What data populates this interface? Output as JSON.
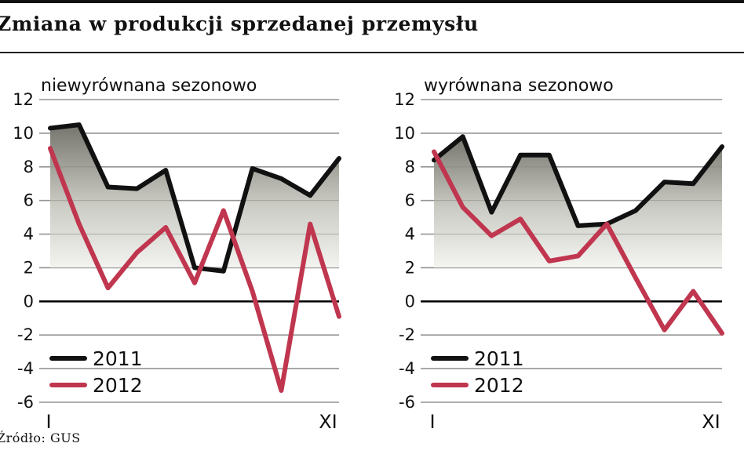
{
  "title": "Zmiana w produkcji sprzedanej przemysłu",
  "source": "Źródło: GUS",
  "colors": {
    "s2011": "#111111",
    "s2012": "#c0364f",
    "grid": "#9a9a9a",
    "zero": "#000000"
  },
  "chart_data": [
    {
      "type": "line",
      "title": "niewyrównana sezonowo",
      "xlabel": "",
      "ylabel": "",
      "ylim": [
        -6,
        12
      ],
      "yticks": [
        "12",
        "10",
        "8",
        "6",
        "4",
        "2",
        "0",
        "-2",
        "-4",
        "-6"
      ],
      "x_tick_labels": [
        {
          "index": 0,
          "label": "I"
        },
        {
          "index": 10,
          "label": "XI"
        }
      ],
      "legend": "bottom-left",
      "shaded_area": true,
      "series": [
        {
          "name": "2011",
          "values": [
            10.3,
            10.5,
            6.8,
            6.7,
            7.8,
            2.0,
            1.8,
            7.9,
            7.3,
            6.3,
            8.5
          ]
        },
        {
          "name": "2012",
          "values": [
            9.1,
            4.6,
            0.8,
            2.9,
            4.4,
            1.1,
            5.4,
            0.6,
            -5.3,
            4.6,
            -0.9
          ]
        }
      ]
    },
    {
      "type": "line",
      "title": "wyrównana sezonowo",
      "xlabel": "",
      "ylabel": "",
      "ylim": [
        -6,
        12
      ],
      "yticks": [
        "12",
        "10",
        "8",
        "6",
        "4",
        "2",
        "0",
        "-2",
        "-4",
        "-6"
      ],
      "x_tick_labels": [
        {
          "index": 0,
          "label": "I"
        },
        {
          "index": 10,
          "label": "XI"
        }
      ],
      "legend": "bottom-left",
      "shaded_area": true,
      "series": [
        {
          "name": "2011",
          "values": [
            8.4,
            9.8,
            5.3,
            8.7,
            8.7,
            4.5,
            4.6,
            5.4,
            7.1,
            7.0,
            9.2
          ]
        },
        {
          "name": "2012",
          "values": [
            8.9,
            5.6,
            3.9,
            4.9,
            2.4,
            2.7,
            4.6,
            1.4,
            -1.7,
            0.6,
            -1.9
          ]
        }
      ]
    }
  ]
}
